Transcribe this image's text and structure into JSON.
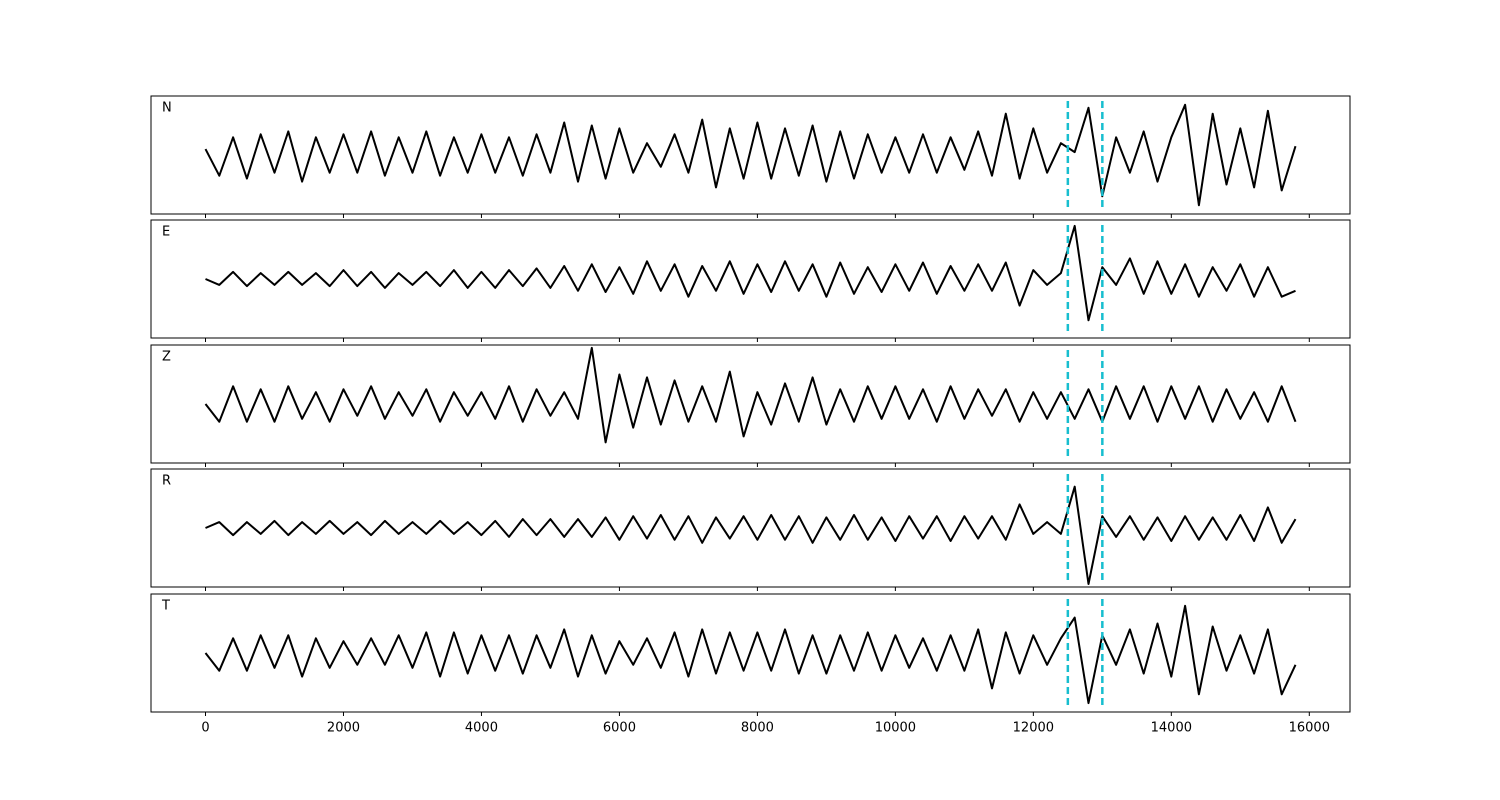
{
  "chart_data": {
    "type": "line",
    "x": [
      0,
      200,
      400,
      600,
      800,
      1000,
      1200,
      1400,
      1600,
      1800,
      2000,
      2200,
      2400,
      2600,
      2800,
      3000,
      3200,
      3400,
      3600,
      3800,
      4000,
      4200,
      4400,
      4600,
      4800,
      5000,
      5200,
      5400,
      5600,
      5800,
      6000,
      6200,
      6400,
      6600,
      6800,
      7000,
      7200,
      7400,
      7600,
      7800,
      8000,
      8200,
      8400,
      8600,
      8800,
      9000,
      9200,
      9400,
      9600,
      9800,
      10000,
      10200,
      10400,
      10600,
      10800,
      11000,
      11200,
      11400,
      11600,
      11800,
      12000,
      12200,
      12400,
      12600,
      12800,
      13000,
      13200,
      13400,
      13600,
      13800,
      14000,
      14200,
      14400,
      14600,
      14800,
      15000,
      15200,
      15400,
      15600,
      15800
    ],
    "series": [
      {
        "name": "N",
        "color": "#000000",
        "values": [
          0.1,
          -0.35,
          0.3,
          -0.4,
          0.35,
          -0.3,
          0.4,
          -0.45,
          0.3,
          -0.3,
          0.35,
          -0.3,
          0.4,
          -0.35,
          0.3,
          -0.3,
          0.4,
          -0.35,
          0.3,
          -0.3,
          0.35,
          -0.3,
          0.3,
          -0.35,
          0.35,
          -0.3,
          0.55,
          -0.45,
          0.5,
          -0.4,
          0.45,
          -0.3,
          0.2,
          -0.2,
          0.35,
          -0.3,
          0.6,
          -0.55,
          0.45,
          -0.4,
          0.55,
          -0.4,
          0.45,
          -0.35,
          0.5,
          -0.45,
          0.4,
          -0.4,
          0.35,
          -0.3,
          0.3,
          -0.3,
          0.35,
          -0.3,
          0.3,
          -0.25,
          0.4,
          -0.35,
          0.7,
          -0.4,
          0.45,
          -0.3,
          0.2,
          0.05,
          0.8,
          -0.7,
          0.3,
          -0.3,
          0.4,
          -0.45,
          0.3,
          0.85,
          -0.85,
          0.7,
          -0.5,
          0.45,
          -0.55,
          0.75,
          -0.6,
          0.15
        ]
      },
      {
        "name": "E",
        "color": "#000000",
        "values": [
          0.0,
          -0.1,
          0.12,
          -0.12,
          0.1,
          -0.1,
          0.12,
          -0.1,
          0.1,
          -0.12,
          0.15,
          -0.12,
          0.12,
          -0.15,
          0.1,
          -0.1,
          0.12,
          -0.12,
          0.15,
          -0.15,
          0.12,
          -0.15,
          0.15,
          -0.12,
          0.18,
          -0.15,
          0.22,
          -0.2,
          0.25,
          -0.22,
          0.2,
          -0.25,
          0.3,
          -0.2,
          0.25,
          -0.3,
          0.22,
          -0.2,
          0.3,
          -0.25,
          0.25,
          -0.22,
          0.3,
          -0.2,
          0.25,
          -0.3,
          0.28,
          -0.25,
          0.2,
          -0.22,
          0.25,
          -0.2,
          0.28,
          -0.25,
          0.22,
          -0.2,
          0.25,
          -0.2,
          0.28,
          -0.45,
          0.15,
          -0.1,
          0.1,
          0.9,
          -0.7,
          0.2,
          -0.1,
          0.35,
          -0.25,
          0.3,
          -0.25,
          0.25,
          -0.3,
          0.2,
          -0.2,
          0.25,
          -0.3,
          0.2,
          -0.3,
          -0.2
        ]
      },
      {
        "name": "Z",
        "color": "#000000",
        "values": [
          0.0,
          -0.3,
          0.3,
          -0.3,
          0.25,
          -0.3,
          0.3,
          -0.25,
          0.2,
          -0.3,
          0.25,
          -0.2,
          0.3,
          -0.25,
          0.2,
          -0.2,
          0.25,
          -0.3,
          0.2,
          -0.2,
          0.2,
          -0.25,
          0.3,
          -0.3,
          0.25,
          -0.2,
          0.2,
          -0.25,
          0.95,
          -0.65,
          0.5,
          -0.4,
          0.45,
          -0.35,
          0.4,
          -0.3,
          0.3,
          -0.3,
          0.55,
          -0.55,
          0.2,
          -0.35,
          0.35,
          -0.3,
          0.45,
          -0.35,
          0.25,
          -0.3,
          0.3,
          -0.25,
          0.3,
          -0.25,
          0.25,
          -0.3,
          0.3,
          -0.25,
          0.25,
          -0.2,
          0.25,
          -0.3,
          0.2,
          -0.25,
          0.2,
          -0.25,
          0.25,
          -0.3,
          0.3,
          -0.25,
          0.3,
          -0.3,
          0.3,
          -0.25,
          0.3,
          -0.3,
          0.25,
          -0.25,
          0.2,
          -0.3,
          0.3,
          -0.3
        ]
      },
      {
        "name": "R",
        "color": "#000000",
        "values": [
          0.0,
          0.1,
          -0.12,
          0.1,
          -0.1,
          0.12,
          -0.12,
          0.1,
          -0.1,
          0.12,
          -0.1,
          0.1,
          -0.12,
          0.12,
          -0.1,
          0.1,
          -0.1,
          0.12,
          -0.1,
          0.1,
          -0.12,
          0.12,
          -0.15,
          0.15,
          -0.12,
          0.15,
          -0.15,
          0.15,
          -0.15,
          0.18,
          -0.2,
          0.2,
          -0.18,
          0.22,
          -0.2,
          0.2,
          -0.25,
          0.18,
          -0.18,
          0.2,
          -0.2,
          0.22,
          -0.2,
          0.2,
          -0.25,
          0.18,
          -0.2,
          0.22,
          -0.2,
          0.18,
          -0.22,
          0.2,
          -0.18,
          0.2,
          -0.22,
          0.2,
          -0.18,
          0.2,
          -0.2,
          0.4,
          -0.1,
          0.1,
          -0.1,
          0.7,
          -0.95,
          0.2,
          -0.15,
          0.2,
          -0.2,
          0.18,
          -0.22,
          0.2,
          -0.2,
          0.18,
          -0.2,
          0.22,
          -0.22,
          0.35,
          -0.25,
          0.15
        ]
      },
      {
        "name": "T",
        "color": "#000000",
        "values": [
          0.0,
          -0.3,
          0.25,
          -0.3,
          0.3,
          -0.25,
          0.3,
          -0.4,
          0.25,
          -0.25,
          0.2,
          -0.2,
          0.25,
          -0.2,
          0.3,
          -0.25,
          0.35,
          -0.4,
          0.35,
          -0.35,
          0.3,
          -0.3,
          0.3,
          -0.35,
          0.3,
          -0.25,
          0.4,
          -0.4,
          0.3,
          -0.35,
          0.2,
          -0.2,
          0.25,
          -0.25,
          0.35,
          -0.4,
          0.4,
          -0.35,
          0.35,
          -0.3,
          0.35,
          -0.3,
          0.4,
          -0.35,
          0.3,
          -0.35,
          0.3,
          -0.3,
          0.35,
          -0.3,
          0.3,
          -0.25,
          0.25,
          -0.3,
          0.3,
          -0.3,
          0.4,
          -0.6,
          0.35,
          -0.35,
          0.3,
          -0.2,
          0.25,
          0.6,
          -0.85,
          0.3,
          -0.2,
          0.4,
          -0.35,
          0.5,
          -0.4,
          0.8,
          -0.7,
          0.45,
          -0.3,
          0.3,
          -0.35,
          0.4,
          -0.7,
          -0.2
        ]
      }
    ],
    "xlim": [
      -790,
      16590
    ],
    "xticks": [
      0,
      2000,
      4000,
      6000,
      8000,
      10000,
      12000,
      14000,
      16000
    ],
    "ylim": [
      -1,
      1
    ],
    "vlines": [
      12500,
      13000
    ],
    "vline_color": "#17becf"
  }
}
